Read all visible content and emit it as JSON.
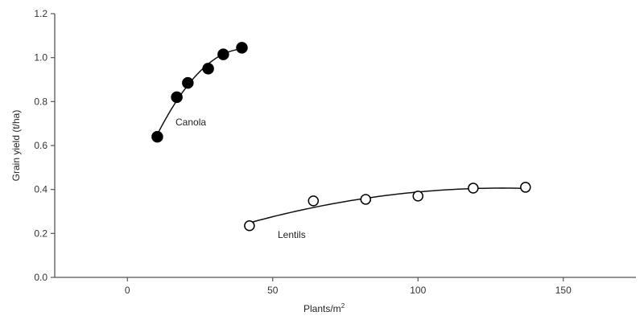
{
  "chart_data": {
    "type": "scatter",
    "title": "",
    "xlabel": "Plants/m",
    "xlabel_sup": "2",
    "ylabel": "Grain yield (t/ha)",
    "xlim": [
      -25,
      175
    ],
    "ylim": [
      0,
      1.2
    ],
    "xticks": [
      0,
      50,
      100,
      150
    ],
    "xtick_labels": [
      "0",
      "50",
      "100",
      "150"
    ],
    "yticks": [
      0,
      0.2,
      0.4,
      0.6,
      0.8,
      1.0,
      1.2
    ],
    "ytick_labels": [
      "0.0",
      "0.2",
      "0.4",
      "0.6",
      "0.8",
      "1.0",
      "1.2"
    ],
    "grid": false,
    "series": [
      {
        "name": "Canola",
        "marker": "filled-circle",
        "fit": "quadratic",
        "x": [
          10.3,
          17.0,
          20.8,
          27.8,
          33.0,
          39.4
        ],
        "y": [
          0.64,
          0.82,
          0.885,
          0.95,
          1.015,
          1.045
        ]
      },
      {
        "name": "Lentils",
        "marker": "open-circle",
        "fit": "quadratic",
        "x": [
          42,
          64,
          82,
          100,
          119,
          137
        ],
        "y": [
          0.235,
          0.348,
          0.355,
          0.37,
          0.406,
          0.41
        ]
      }
    ]
  }
}
